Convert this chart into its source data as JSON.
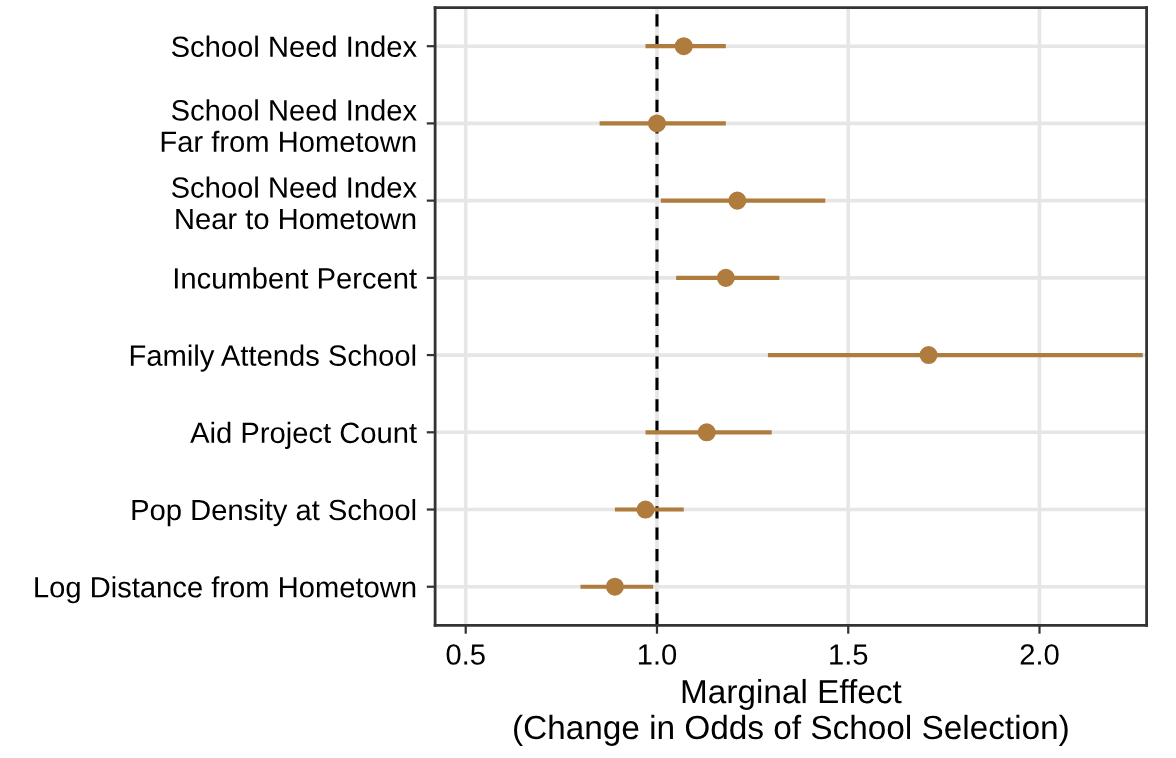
{
  "chart_data": {
    "type": "scatter",
    "orientation": "horizontal",
    "categories": [
      "School Need Index",
      "School Need Index\nFar from Hometown",
      "School Need Index\nNear to Hometown",
      "Incumbent Percent",
      "Family Attends School",
      "Aid Project Count",
      "Pop Density at School",
      "Log Distance from Hometown"
    ],
    "series": [
      {
        "color": "#b07c3e",
        "values": [
          1.07,
          1.0,
          1.21,
          1.18,
          1.71,
          1.13,
          0.97,
          0.89
        ],
        "errors": [
          [
            0.97,
            1.18
          ],
          [
            0.85,
            1.18
          ],
          [
            1.01,
            1.44
          ],
          [
            1.05,
            1.32
          ],
          [
            1.29,
            2.27
          ],
          [
            0.97,
            1.3
          ],
          [
            0.89,
            1.07
          ],
          [
            0.8,
            0.99
          ]
        ]
      }
    ],
    "xlim": [
      0.42,
      2.28
    ],
    "xticks": [
      {
        "value": 0.5,
        "label": "0.5"
      },
      {
        "value": 1.0,
        "label": "1.0"
      },
      {
        "value": 1.5,
        "label": "1.5"
      },
      {
        "value": 2.0,
        "label": "2.0"
      }
    ],
    "xlabel": "Marginal Effect\n(Change in Odds of School Selection)",
    "ref_lines": [
      {
        "axis": "x",
        "value": 1.0,
        "color": "#000000",
        "line_style": "dashed"
      }
    ],
    "grid": true,
    "marker": "circle"
  }
}
